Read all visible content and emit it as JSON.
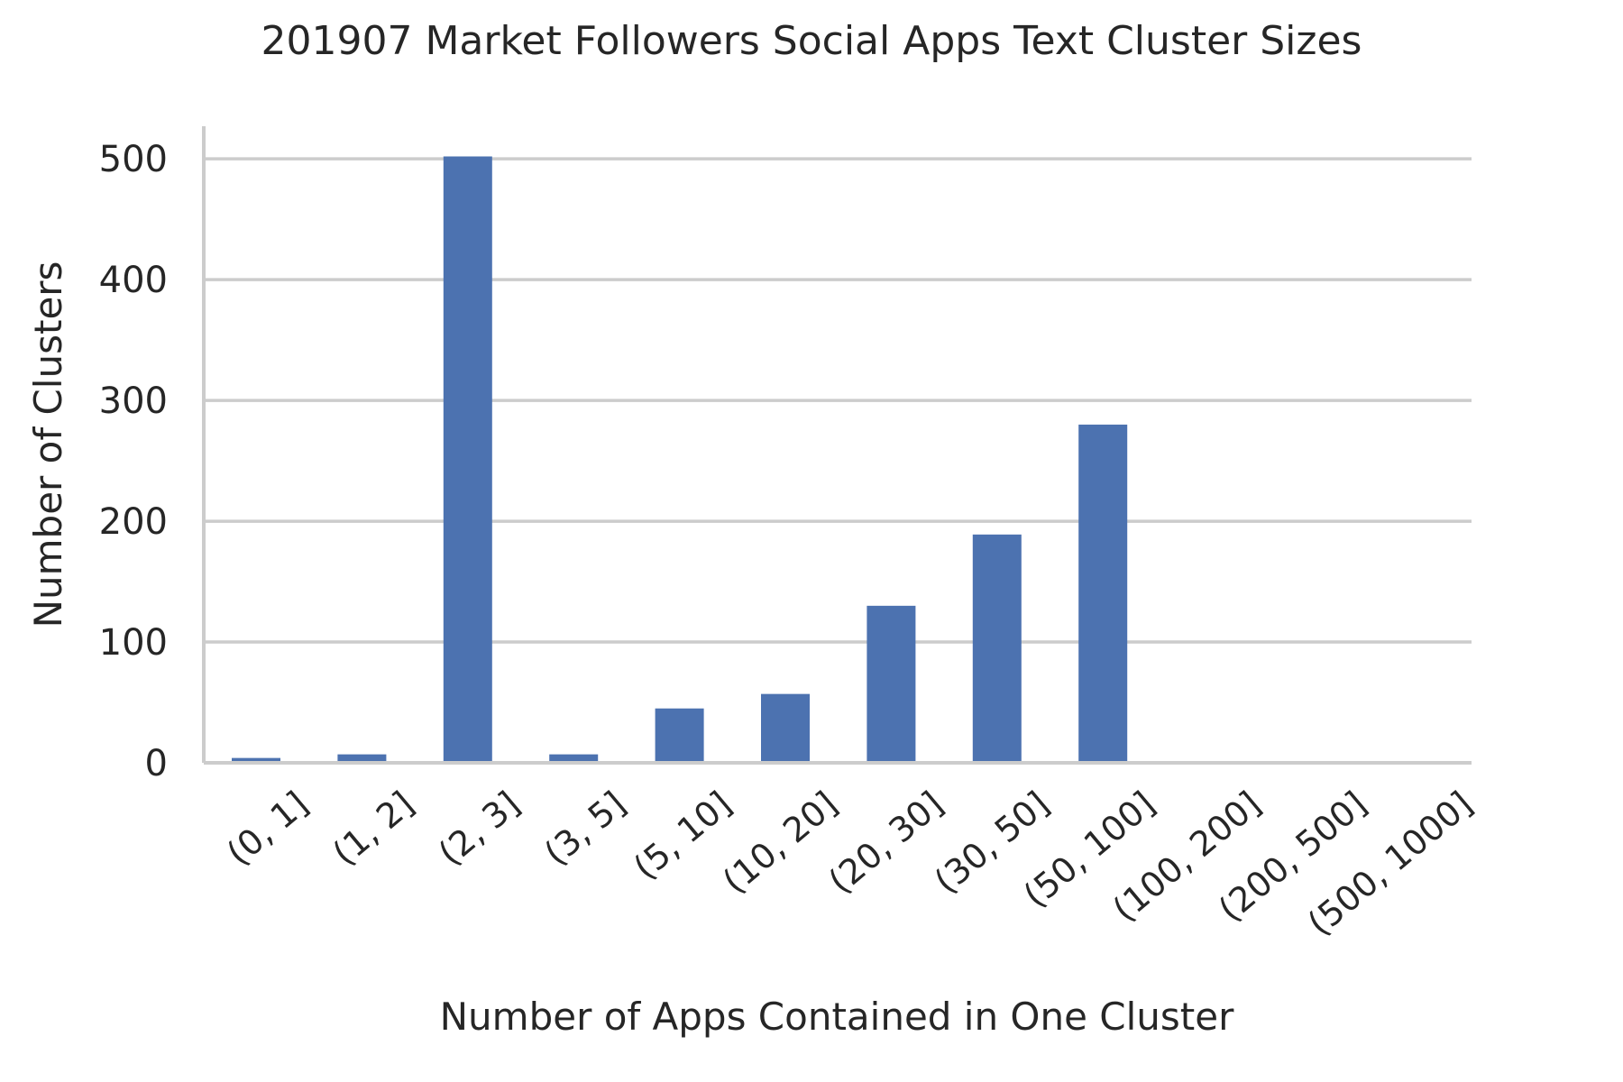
{
  "chart_data": {
    "type": "bar",
    "title": "201907 Market Followers Social Apps Text Cluster Sizes",
    "xlabel": "Number of Apps Contained in One Cluster",
    "ylabel": "Number of Clusters",
    "categories": [
      "(0, 1]",
      "(1, 2]",
      "(2, 3]",
      "(3, 5]",
      "(5, 10]",
      "(10, 20]",
      "(20, 30]",
      "(30, 50]",
      "(50, 100]",
      "(100, 200]",
      "(200, 500]",
      "(500, 1000]"
    ],
    "values": [
      4,
      7,
      502,
      7,
      45,
      57,
      130,
      189,
      280,
      0,
      0,
      0
    ],
    "yticks": [
      0,
      100,
      200,
      300,
      400,
      500
    ],
    "ylim": [
      0,
      527
    ],
    "grid": "horizontal",
    "legend": "none",
    "colors": {
      "bar": "#4c72b0",
      "grid": "#cccccc",
      "axis": "#cccccc",
      "text": "#262626"
    }
  }
}
